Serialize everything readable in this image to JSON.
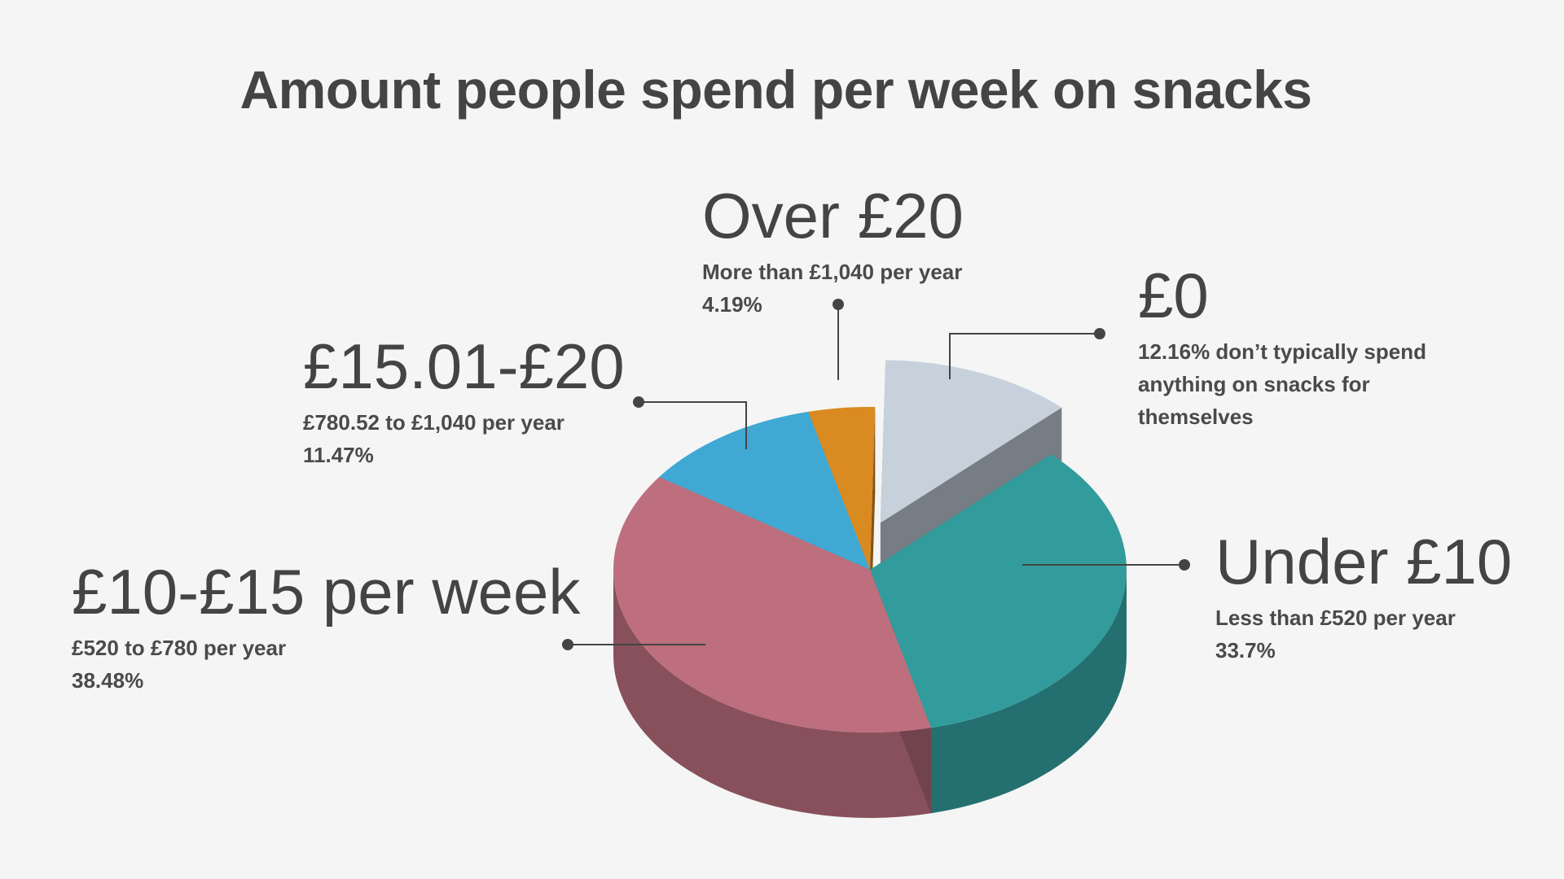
{
  "title": "Amount people spend per week on snacks",
  "colors": {
    "under_10": "#329c9c",
    "ten_15": "#bd6f7e",
    "fifteen_20": "#3fa9d4",
    "over_20": "#d98a21",
    "zero": "#c7d1dc",
    "text": "#444444"
  },
  "chart_data": {
    "type": "pie",
    "title": "Amount people spend per week on snacks",
    "slices": [
      {
        "label": "£0",
        "sublabel": "12.16% don’t typically spend anything on snacks for themselves",
        "value": 12.16,
        "color": "#c7d1dc",
        "exploded": true
      },
      {
        "label": "Under £10",
        "sublabel": "Less than £520 per year",
        "value": 33.7,
        "value_label": "33.7%",
        "color": "#329c9c"
      },
      {
        "label": "£10-£15 per week",
        "sublabel": "£520 to £780 per year",
        "value": 38.48,
        "value_label": "38.48%",
        "color": "#bd6f7e"
      },
      {
        "label": "£15.01-£20",
        "sublabel": "£780.52 to £1,040 per year",
        "value": 11.47,
        "value_label": "11.47%",
        "color": "#3fa9d4"
      },
      {
        "label": "Over £20",
        "sublabel": "More than £1,040 per year",
        "value": 4.19,
        "value_label": "4.19%",
        "color": "#d98a21"
      }
    ],
    "style": "3d"
  }
}
